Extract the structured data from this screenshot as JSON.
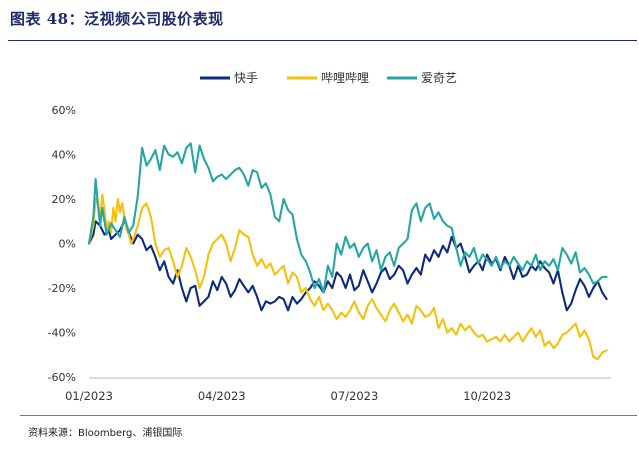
{
  "figure_title": "图表 48：泛视频公司股价表现",
  "source": "资料来源：Bloomberg、浦银国际",
  "chart_data": {
    "type": "line",
    "title": "",
    "xlabel": "",
    "ylabel": "",
    "ylim": [
      -60,
      60
    ],
    "yticks": [
      -60,
      -40,
      -20,
      0,
      20,
      40,
      60
    ],
    "ytick_labels": [
      "-60%",
      "-40%",
      "-20%",
      "0%",
      "20%",
      "40%",
      "60%"
    ],
    "xlim": [
      0,
      236
    ],
    "xticks": [
      0,
      60,
      120,
      180
    ],
    "xtick_labels": [
      "01/2023",
      "04/2023",
      "07/2023",
      "10/2023"
    ],
    "legend_position": "top-center",
    "x_unit": "trading day index from 01/2023",
    "series": [
      {
        "name": "快手",
        "color": "#0d2a7b",
        "x": [
          0,
          2,
          3,
          5,
          7,
          9,
          10,
          12,
          14,
          16,
          18,
          20,
          22,
          24,
          26,
          28,
          30,
          32,
          34,
          36,
          38,
          40,
          42,
          44,
          46,
          48,
          50,
          52,
          54,
          56,
          58,
          60,
          62,
          64,
          66,
          68,
          70,
          72,
          74,
          76,
          78,
          80,
          82,
          84,
          86,
          88,
          90,
          92,
          94,
          96,
          98,
          100,
          102,
          104,
          106,
          108,
          110,
          112,
          114,
          116,
          118,
          120,
          122,
          124,
          126,
          128,
          130,
          132,
          134,
          136,
          138,
          140,
          142,
          144,
          146,
          148,
          150,
          152,
          154,
          156,
          158,
          160,
          162,
          164,
          166,
          168,
          170,
          172,
          174,
          176,
          178,
          180,
          182,
          184,
          186,
          188,
          190,
          192,
          194,
          196,
          198,
          200,
          202,
          204,
          206,
          208,
          210,
          212,
          214,
          216,
          218,
          220,
          222,
          224,
          226,
          228,
          230,
          232,
          234
        ],
        "values": [
          0,
          4,
          10,
          8,
          4,
          6,
          2,
          4,
          6,
          10,
          5,
          0,
          4,
          2,
          -3,
          -1,
          -6,
          -12,
          -8,
          -15,
          -18,
          -12,
          -20,
          -26,
          -20,
          -19,
          -28,
          -26,
          -24,
          -17,
          -21,
          -15,
          -18,
          -24,
          -21,
          -16,
          -19,
          -22,
          -19,
          -24,
          -30,
          -26,
          -27,
          -26,
          -24,
          -25,
          -30,
          -24,
          -27,
          -25,
          -22,
          -20,
          -17,
          -19,
          -22,
          -17,
          -20,
          -13,
          -15,
          -20,
          -14,
          -21,
          -19,
          -12,
          -17,
          -22,
          -18,
          -13,
          -11,
          -16,
          -14,
          -10,
          -12,
          -18,
          -14,
          -11,
          -14,
          -5,
          -8,
          -3,
          -6,
          -1,
          -4,
          3,
          -2,
          0,
          -6,
          -13,
          -10,
          -8,
          -12,
          -5,
          -9,
          -7,
          -12,
          -6,
          -10,
          -16,
          -10,
          -15,
          -14,
          -10,
          -12,
          -8,
          -11,
          -13,
          -18,
          -12,
          -22,
          -30,
          -27,
          -21,
          -16,
          -19,
          -24,
          -20,
          -17,
          -22,
          -25
        ]
      },
      {
        "name": "哔哩哔哩",
        "color": "#f4c10f",
        "x": [
          0,
          2,
          3,
          4,
          5,
          6,
          7,
          8,
          9,
          10,
          11,
          12,
          13,
          14,
          15,
          16,
          17,
          18,
          19,
          20,
          22,
          24,
          26,
          28,
          30,
          32,
          34,
          36,
          38,
          40,
          42,
          44,
          46,
          48,
          50,
          52,
          54,
          56,
          58,
          60,
          62,
          64,
          66,
          68,
          70,
          72,
          74,
          76,
          78,
          80,
          82,
          84,
          86,
          88,
          90,
          92,
          94,
          96,
          98,
          100,
          102,
          104,
          106,
          108,
          110,
          112,
          114,
          116,
          118,
          120,
          122,
          124,
          126,
          128,
          130,
          132,
          134,
          136,
          138,
          140,
          142,
          144,
          146,
          148,
          150,
          152,
          154,
          156,
          158,
          160,
          162,
          164,
          166,
          168,
          170,
          172,
          174,
          176,
          178,
          180,
          182,
          184,
          186,
          188,
          190,
          192,
          194,
          196,
          198,
          200,
          202,
          204,
          206,
          208,
          210,
          212,
          214,
          216,
          218,
          220,
          222,
          224,
          226,
          228,
          230,
          232,
          234
        ],
        "values": [
          0,
          8,
          20,
          18,
          12,
          22,
          15,
          6,
          10,
          5,
          16,
          10,
          20,
          14,
          18,
          12,
          6,
          4,
          0,
          2,
          8,
          16,
          18,
          12,
          0,
          -6,
          -3,
          -2,
          -8,
          -15,
          -10,
          -2,
          -6,
          -12,
          -20,
          -15,
          -5,
          0,
          2,
          4,
          0,
          -8,
          -2,
          6,
          4,
          3,
          -5,
          -10,
          -7,
          -11,
          -9,
          -14,
          -12,
          -10,
          -18,
          -13,
          -15,
          -22,
          -20,
          -25,
          -28,
          -24,
          -30,
          -27,
          -30,
          -34,
          -31,
          -33,
          -30,
          -26,
          -31,
          -34,
          -28,
          -25,
          -29,
          -32,
          -35,
          -30,
          -27,
          -31,
          -35,
          -32,
          -36,
          -28,
          -30,
          -33,
          -32,
          -29,
          -38,
          -34,
          -40,
          -38,
          -41,
          -36,
          -39,
          -37,
          -40,
          -42,
          -41,
          -44,
          -43,
          -42,
          -44,
          -41,
          -44,
          -42,
          -40,
          -44,
          -41,
          -38,
          -42,
          -39,
          -46,
          -44,
          -47,
          -45,
          -41,
          -40,
          -38,
          -36,
          -42,
          -39,
          -43,
          -51,
          -52,
          -49,
          -48
        ]
      },
      {
        "name": "爱奇艺",
        "color": "#26a6a3",
        "x": [
          0,
          2,
          3,
          4,
          5,
          6,
          7,
          8,
          10,
          12,
          14,
          16,
          18,
          20,
          22,
          24,
          26,
          28,
          30,
          32,
          34,
          36,
          38,
          40,
          42,
          44,
          46,
          48,
          50,
          52,
          54,
          56,
          58,
          60,
          62,
          64,
          66,
          68,
          70,
          72,
          74,
          76,
          78,
          80,
          82,
          84,
          86,
          88,
          90,
          92,
          94,
          96,
          98,
          100,
          102,
          104,
          106,
          108,
          110,
          112,
          114,
          116,
          118,
          120,
          122,
          124,
          126,
          128,
          130,
          132,
          134,
          136,
          138,
          140,
          142,
          144,
          146,
          148,
          150,
          152,
          154,
          156,
          158,
          160,
          162,
          164,
          166,
          168,
          170,
          172,
          174,
          176,
          178,
          180,
          182,
          184,
          186,
          188,
          190,
          192,
          194,
          196,
          198,
          200,
          202,
          204,
          206,
          208,
          210,
          212,
          214,
          216,
          218,
          220,
          222,
          224,
          226,
          228,
          230,
          232,
          234
        ],
        "values": [
          0,
          12,
          29,
          18,
          8,
          16,
          10,
          4,
          9,
          6,
          3,
          12,
          5,
          8,
          21,
          43,
          35,
          38,
          42,
          33,
          44,
          40,
          39,
          41,
          36,
          43,
          45,
          32,
          44,
          38,
          34,
          28,
          30,
          31,
          29,
          31,
          33,
          34,
          31,
          26,
          33,
          32,
          25,
          27,
          22,
          12,
          10,
          20,
          15,
          13,
          2,
          -5,
          -8,
          -13,
          -20,
          -16,
          -22,
          -10,
          -15,
          0,
          -5,
          3,
          -2,
          0,
          -6,
          -2,
          0,
          -8,
          -3,
          -12,
          -6,
          -4,
          -10,
          -2,
          0,
          2,
          15,
          18,
          10,
          16,
          18,
          11,
          14,
          10,
          8,
          7,
          -2,
          -10,
          -4,
          -6,
          -2,
          -9,
          -5,
          -7,
          -10,
          -6,
          -11,
          -8,
          -10,
          -6,
          -9,
          -12,
          -8,
          -10,
          -5,
          -12,
          -8,
          -10,
          -7,
          -12,
          -2,
          -5,
          -9,
          -4,
          -13,
          -11,
          -14,
          -18,
          -17,
          -15,
          -15
        ]
      }
    ]
  }
}
